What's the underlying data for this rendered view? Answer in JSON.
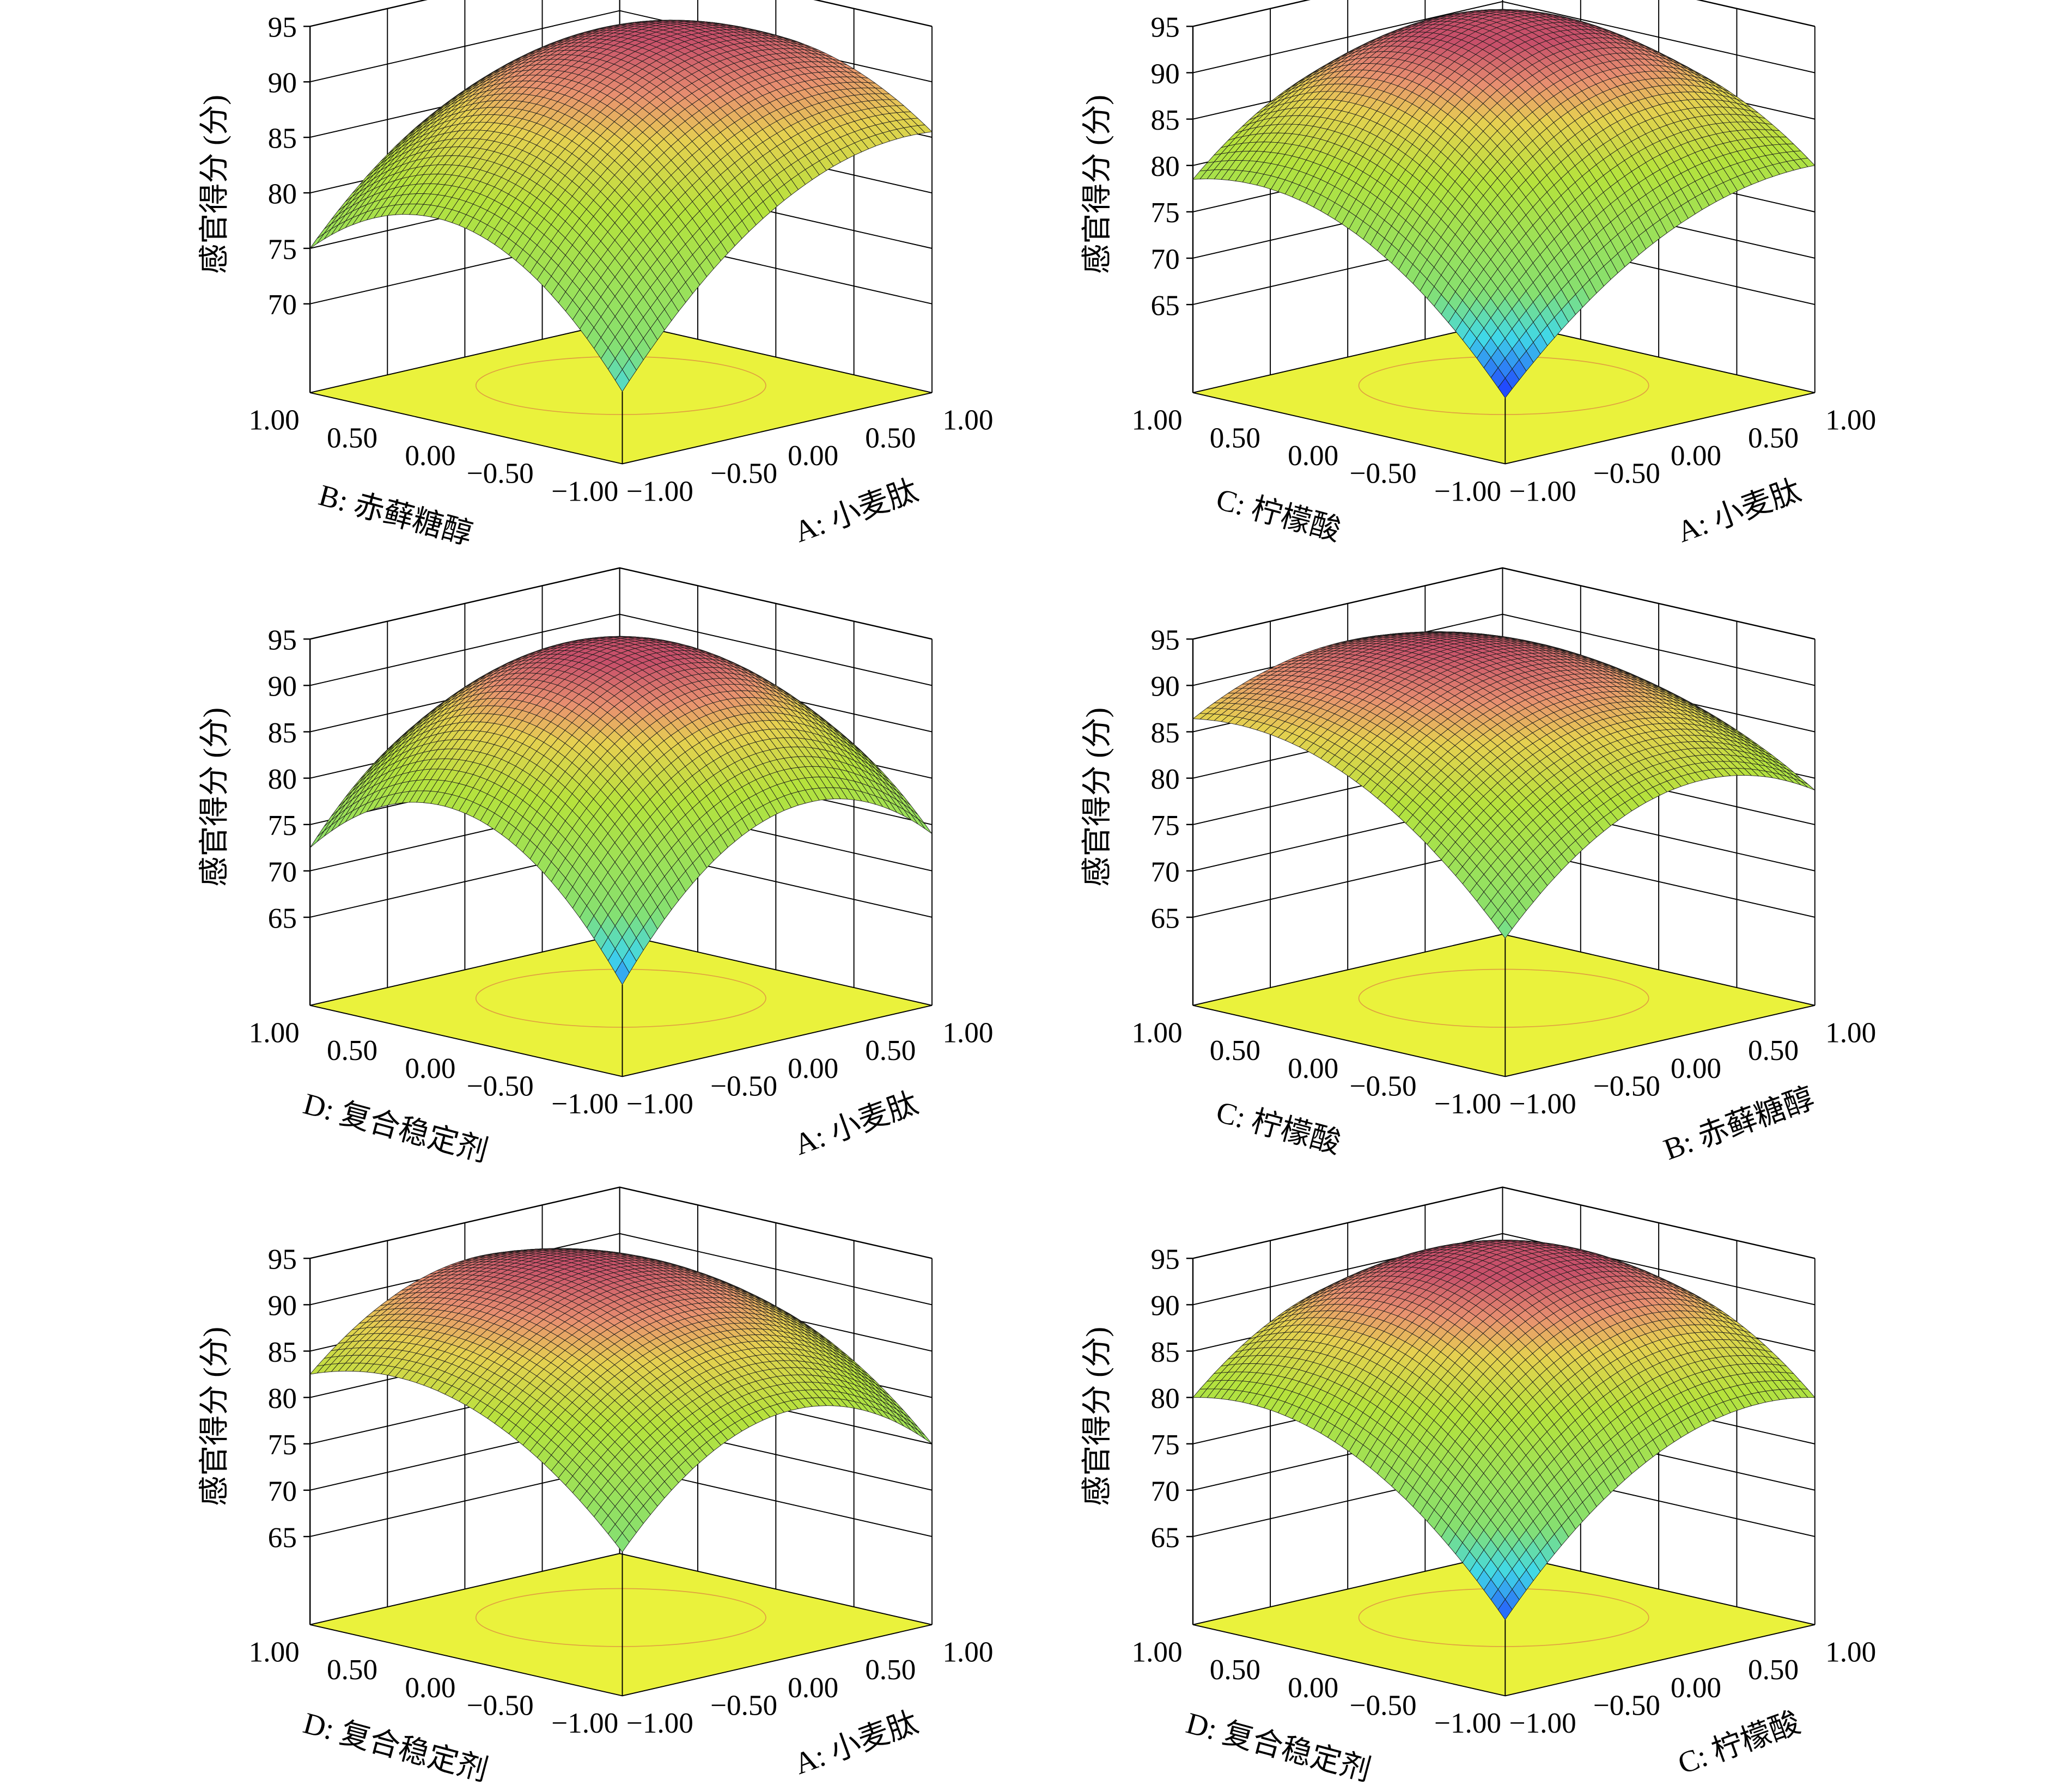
{
  "chart_data": [
    {
      "type": "surface",
      "x_label": "A: 小麦肽",
      "y_label": "B: 赤藓糖醇",
      "z_label": "感官得分 (分)",
      "xy_ticks": [
        "-1.00",
        "-0.50",
        "0.00",
        "0.50",
        "1.00"
      ],
      "z_ticks": [
        "70",
        "75",
        "80",
        "85",
        "90",
        "95"
      ],
      "zlim": [
        62,
        95
      ],
      "grid_xy": [
        -1,
        0,
        1
      ],
      "z_grid": [
        [
          68.5,
          82,
          85.5
        ],
        [
          80,
          92,
          91
        ],
        [
          75,
          86,
          86
        ]
      ]
    },
    {
      "type": "surface",
      "x_label": "A: 小麦肽",
      "y_label": "C: 柠檬酸",
      "z_label": "感官得分 (分)",
      "xy_ticks": [
        "-1.00",
        "-0.50",
        "0.00",
        "0.50",
        "1.00"
      ],
      "z_ticks": [
        "65",
        "70",
        "75",
        "80",
        "85",
        "90",
        "95"
      ],
      "zlim": [
        55.5,
        95
      ],
      "grid_xy": [
        -1,
        0,
        1
      ],
      "z_grid": [
        [
          62.6,
          76,
          80
        ],
        [
          77,
          93,
          88
        ],
        [
          78.5,
          88,
          84
        ]
      ]
    },
    {
      "type": "surface",
      "x_label": "A: 小麦肽",
      "y_label": "D: 复合稳定剂",
      "z_label": "感官得分 (分)",
      "xy_ticks": [
        "-1.00",
        "-0.50",
        "0.00",
        "0.50",
        "1.00"
      ],
      "z_ticks": [
        "65",
        "70",
        "75",
        "80",
        "85",
        "90",
        "95"
      ],
      "zlim": [
        55.5,
        95
      ],
      "grid_xy": [
        -1,
        0,
        1
      ],
      "z_grid": [
        [
          65.4,
          80,
          74
        ],
        [
          80,
          93.5,
          85
        ],
        [
          72.5,
          85,
          78
        ]
      ]
    },
    {
      "type": "surface",
      "x_label": "B: 赤藓糖醇",
      "y_label": "C: 柠檬酸",
      "z_label": "感官得分 (分)",
      "xy_ticks": [
        "-1.00",
        "-0.50",
        "0.00",
        "0.50",
        "1.00"
      ],
      "z_ticks": [
        "65",
        "70",
        "75",
        "80",
        "85",
        "90",
        "95"
      ],
      "zlim": [
        55.5,
        95
      ],
      "grid_xy": [
        -1,
        0,
        1
      ],
      "z_grid": [
        [
          70.4,
          82,
          78.7
        ],
        [
          84,
          92,
          86
        ],
        [
          86.4,
          91,
          86
        ]
      ]
    },
    {
      "type": "surface",
      "x_label": "A: 小麦肽",
      "y_label": "D: 复合稳定剂",
      "z_label": "感官得分 (分)",
      "xy_ticks": [
        "-1.00",
        "-0.50",
        "0.00",
        "0.50",
        "1.00"
      ],
      "z_ticks": [
        "65",
        "70",
        "75",
        "80",
        "85",
        "90",
        "95"
      ],
      "zlim": [
        55.5,
        95
      ],
      "grid_xy": [
        -1,
        0,
        1
      ],
      "z_grid": [
        [
          71,
          82,
          75
        ],
        [
          83,
          92,
          86
        ],
        [
          82.5,
          91,
          85
        ]
      ]
    },
    {
      "type": "surface",
      "x_label": "C: 柠檬酸",
      "y_label": "D: 复合稳定剂",
      "z_label": "感官得分 (分)",
      "xy_ticks": [
        "-1.00",
        "-0.50",
        "0.00",
        "0.50",
        "1.00"
      ],
      "z_ticks": [
        "65",
        "70",
        "75",
        "80",
        "85",
        "90",
        "95"
      ],
      "zlim": [
        55.5,
        95
      ],
      "grid_xy": [
        -1,
        0,
        1
      ],
      "z_grid": [
        [
          63.7,
          78,
          80
        ],
        [
          78,
          93,
          89
        ],
        [
          80,
          89,
          84
        ]
      ]
    }
  ],
  "colors": {
    "floor": "#eaf23c",
    "mesh": "#1a1a1a",
    "grid": "#000000",
    "colormap": [
      [
        63,
        "#1e3cff"
      ],
      [
        68,
        "#40d8e8"
      ],
      [
        72,
        "#86e070"
      ],
      [
        82,
        "#b6e23c"
      ],
      [
        87,
        "#e6d050"
      ],
      [
        90,
        "#e89070"
      ],
      [
        93,
        "#c8506a"
      ]
    ]
  }
}
